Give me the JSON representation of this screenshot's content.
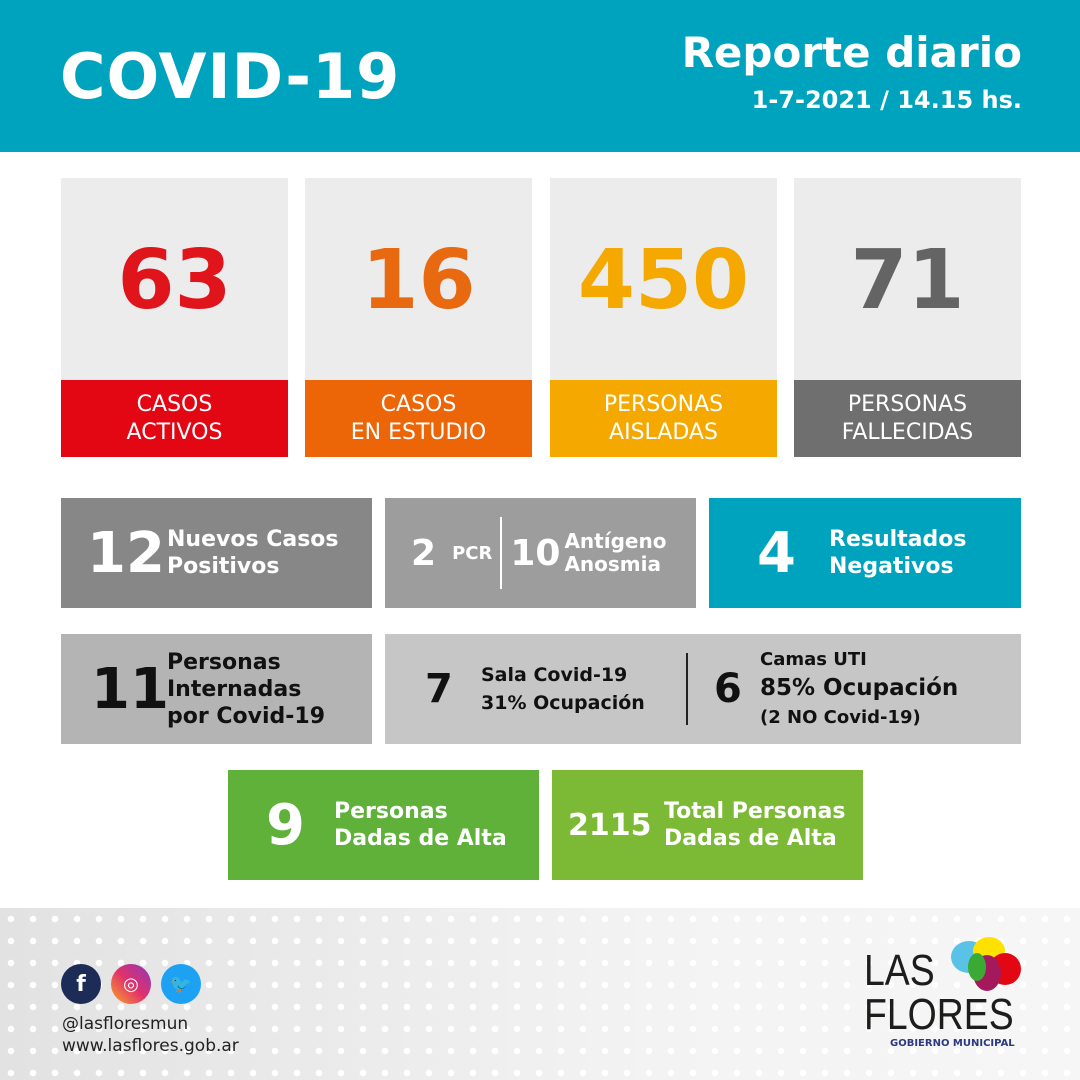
{
  "header": {
    "title": "COVID-19",
    "subtitle": "Reporte diario",
    "date": "1-7-2021 / 14.15 hs."
  },
  "cards": [
    {
      "value": "63",
      "line1": "CASOS",
      "line2": "ACTIVOS",
      "color": "#e30613"
    },
    {
      "value": "16",
      "line1": "CASOS",
      "line2": "EN ESTUDIO",
      "color": "#ec6608"
    },
    {
      "value": "450",
      "line1": "PERSONAS",
      "line2": "AISLADAS",
      "color": "#f5a800"
    },
    {
      "value": "71",
      "line1": "PERSONAS",
      "line2": "FALLECIDAS",
      "color": "#6f6f6f"
    }
  ],
  "nuevos": {
    "value": "12",
    "line1": "Nuevos Casos",
    "line2": "Positivos"
  },
  "tests": {
    "pcr_value": "2",
    "pcr_label": "PCR",
    "ant_value": "10",
    "ant_line1": "Antígeno",
    "ant_line2": "Anosmia"
  },
  "negativos": {
    "value": "4",
    "line1": "Resultados",
    "line2": "Negativos"
  },
  "internados": {
    "value": "11",
    "line1": "Personas",
    "line2": "Internadas",
    "line3": "por Covid-19"
  },
  "sala": {
    "value": "7",
    "line1": "Sala Covid-19",
    "line2": "31% Ocupación"
  },
  "uti": {
    "value": "6",
    "line1": "Camas UTI",
    "line2": "85% Ocupación",
    "line3": "(2 NO Covid-19)"
  },
  "alta": {
    "value": "9",
    "line1": "Personas",
    "line2": "Dadas de Alta"
  },
  "total_alta": {
    "value": "2115",
    "line1": "Total Personas",
    "line2": "Dadas de Alta"
  },
  "footer": {
    "handle": "@lasfloresmun",
    "website": "www.lasflores.gob.ar",
    "social_icons": [
      "facebook-icon",
      "instagram-icon",
      "twitter-icon"
    ],
    "logo": {
      "line1": "LAS",
      "line2": "FLORES",
      "line3": "GOBIERNO MUNICIPAL"
    }
  }
}
